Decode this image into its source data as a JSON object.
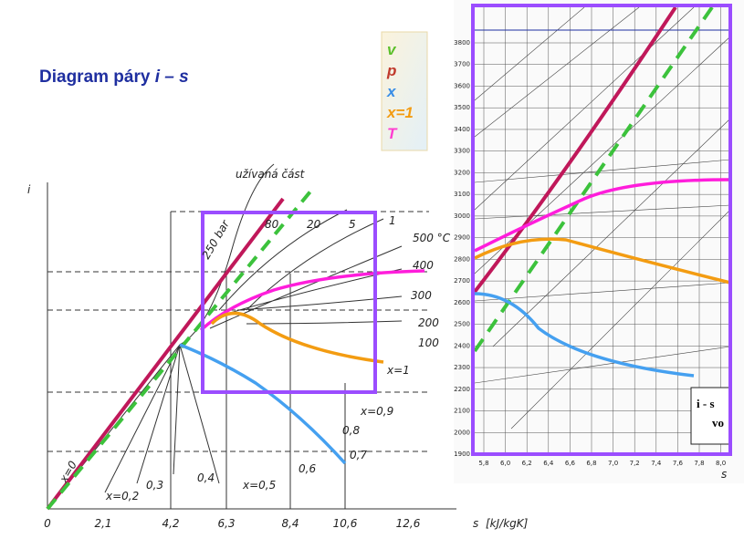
{
  "title": {
    "prefix": "Diagram páry ",
    "symbol": "i – s"
  },
  "legend": [
    "v",
    "p",
    "x",
    "x=1",
    "T"
  ],
  "left_diagram": {
    "axis_y": "i",
    "axis_x": "s",
    "unit": "[kJ/kgK]",
    "x_ticks": [
      "0",
      "2,1",
      "4,2",
      "6,3",
      "8,4",
      "10,6",
      "12,6"
    ],
    "annotation": "užívaná část",
    "temperature_labels": [
      "500 °C",
      "400",
      "300",
      "200",
      "100"
    ],
    "quality_labels": [
      "x=1",
      "x=0,9",
      "0,8",
      "0,7",
      "0,6",
      "x=0,5",
      "0,4",
      "0,3",
      "x=0,2",
      "x=0"
    ],
    "pressure_labels": [
      "250 bar",
      "80",
      "20",
      "5",
      "1"
    ]
  },
  "right_diagram": {
    "y_ticks": [
      1900,
      2000,
      2100,
      2200,
      2300,
      2400,
      2500,
      2600,
      2700,
      2800,
      2900,
      3000,
      3100,
      3200,
      3300,
      3400,
      3500,
      3600,
      3700,
      3800
    ],
    "x_ticks": [
      "5,8",
      "6,0",
      "6,2",
      "6,4",
      "6,6",
      "6,8",
      "7,0",
      "7,2",
      "7,4",
      "7,6",
      "7,8",
      "8,0"
    ],
    "box_title": "i - s",
    "box_subtitle": "vo",
    "axis_x": "s"
  }
}
